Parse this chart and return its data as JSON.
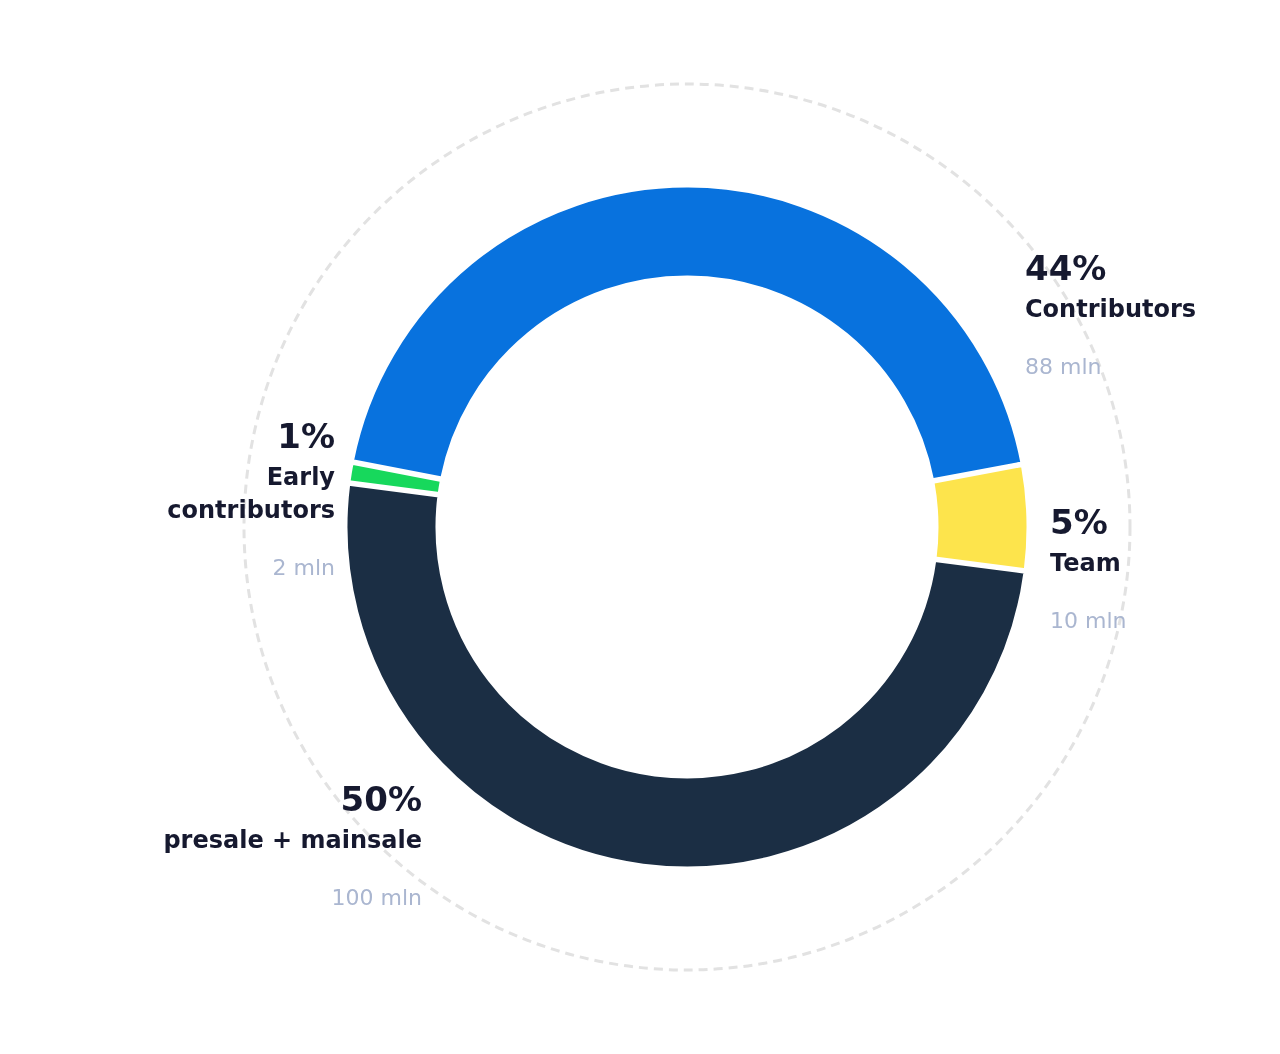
{
  "chart_data": {
    "type": "donut",
    "categories": [
      "Contributors",
      "Team",
      "presale + mainsale",
      "Early contributors"
    ],
    "values": [
      44,
      5,
      50,
      1
    ],
    "colors": [
      "#0872de",
      "#fde44c",
      "#1b2e44",
      "#17d85c"
    ],
    "value_labels": [
      "44%",
      "5%",
      "50%",
      "1%"
    ],
    "annotations": [
      "88 mln",
      "10 mln",
      "100 mln",
      "2 mln"
    ]
  }
}
